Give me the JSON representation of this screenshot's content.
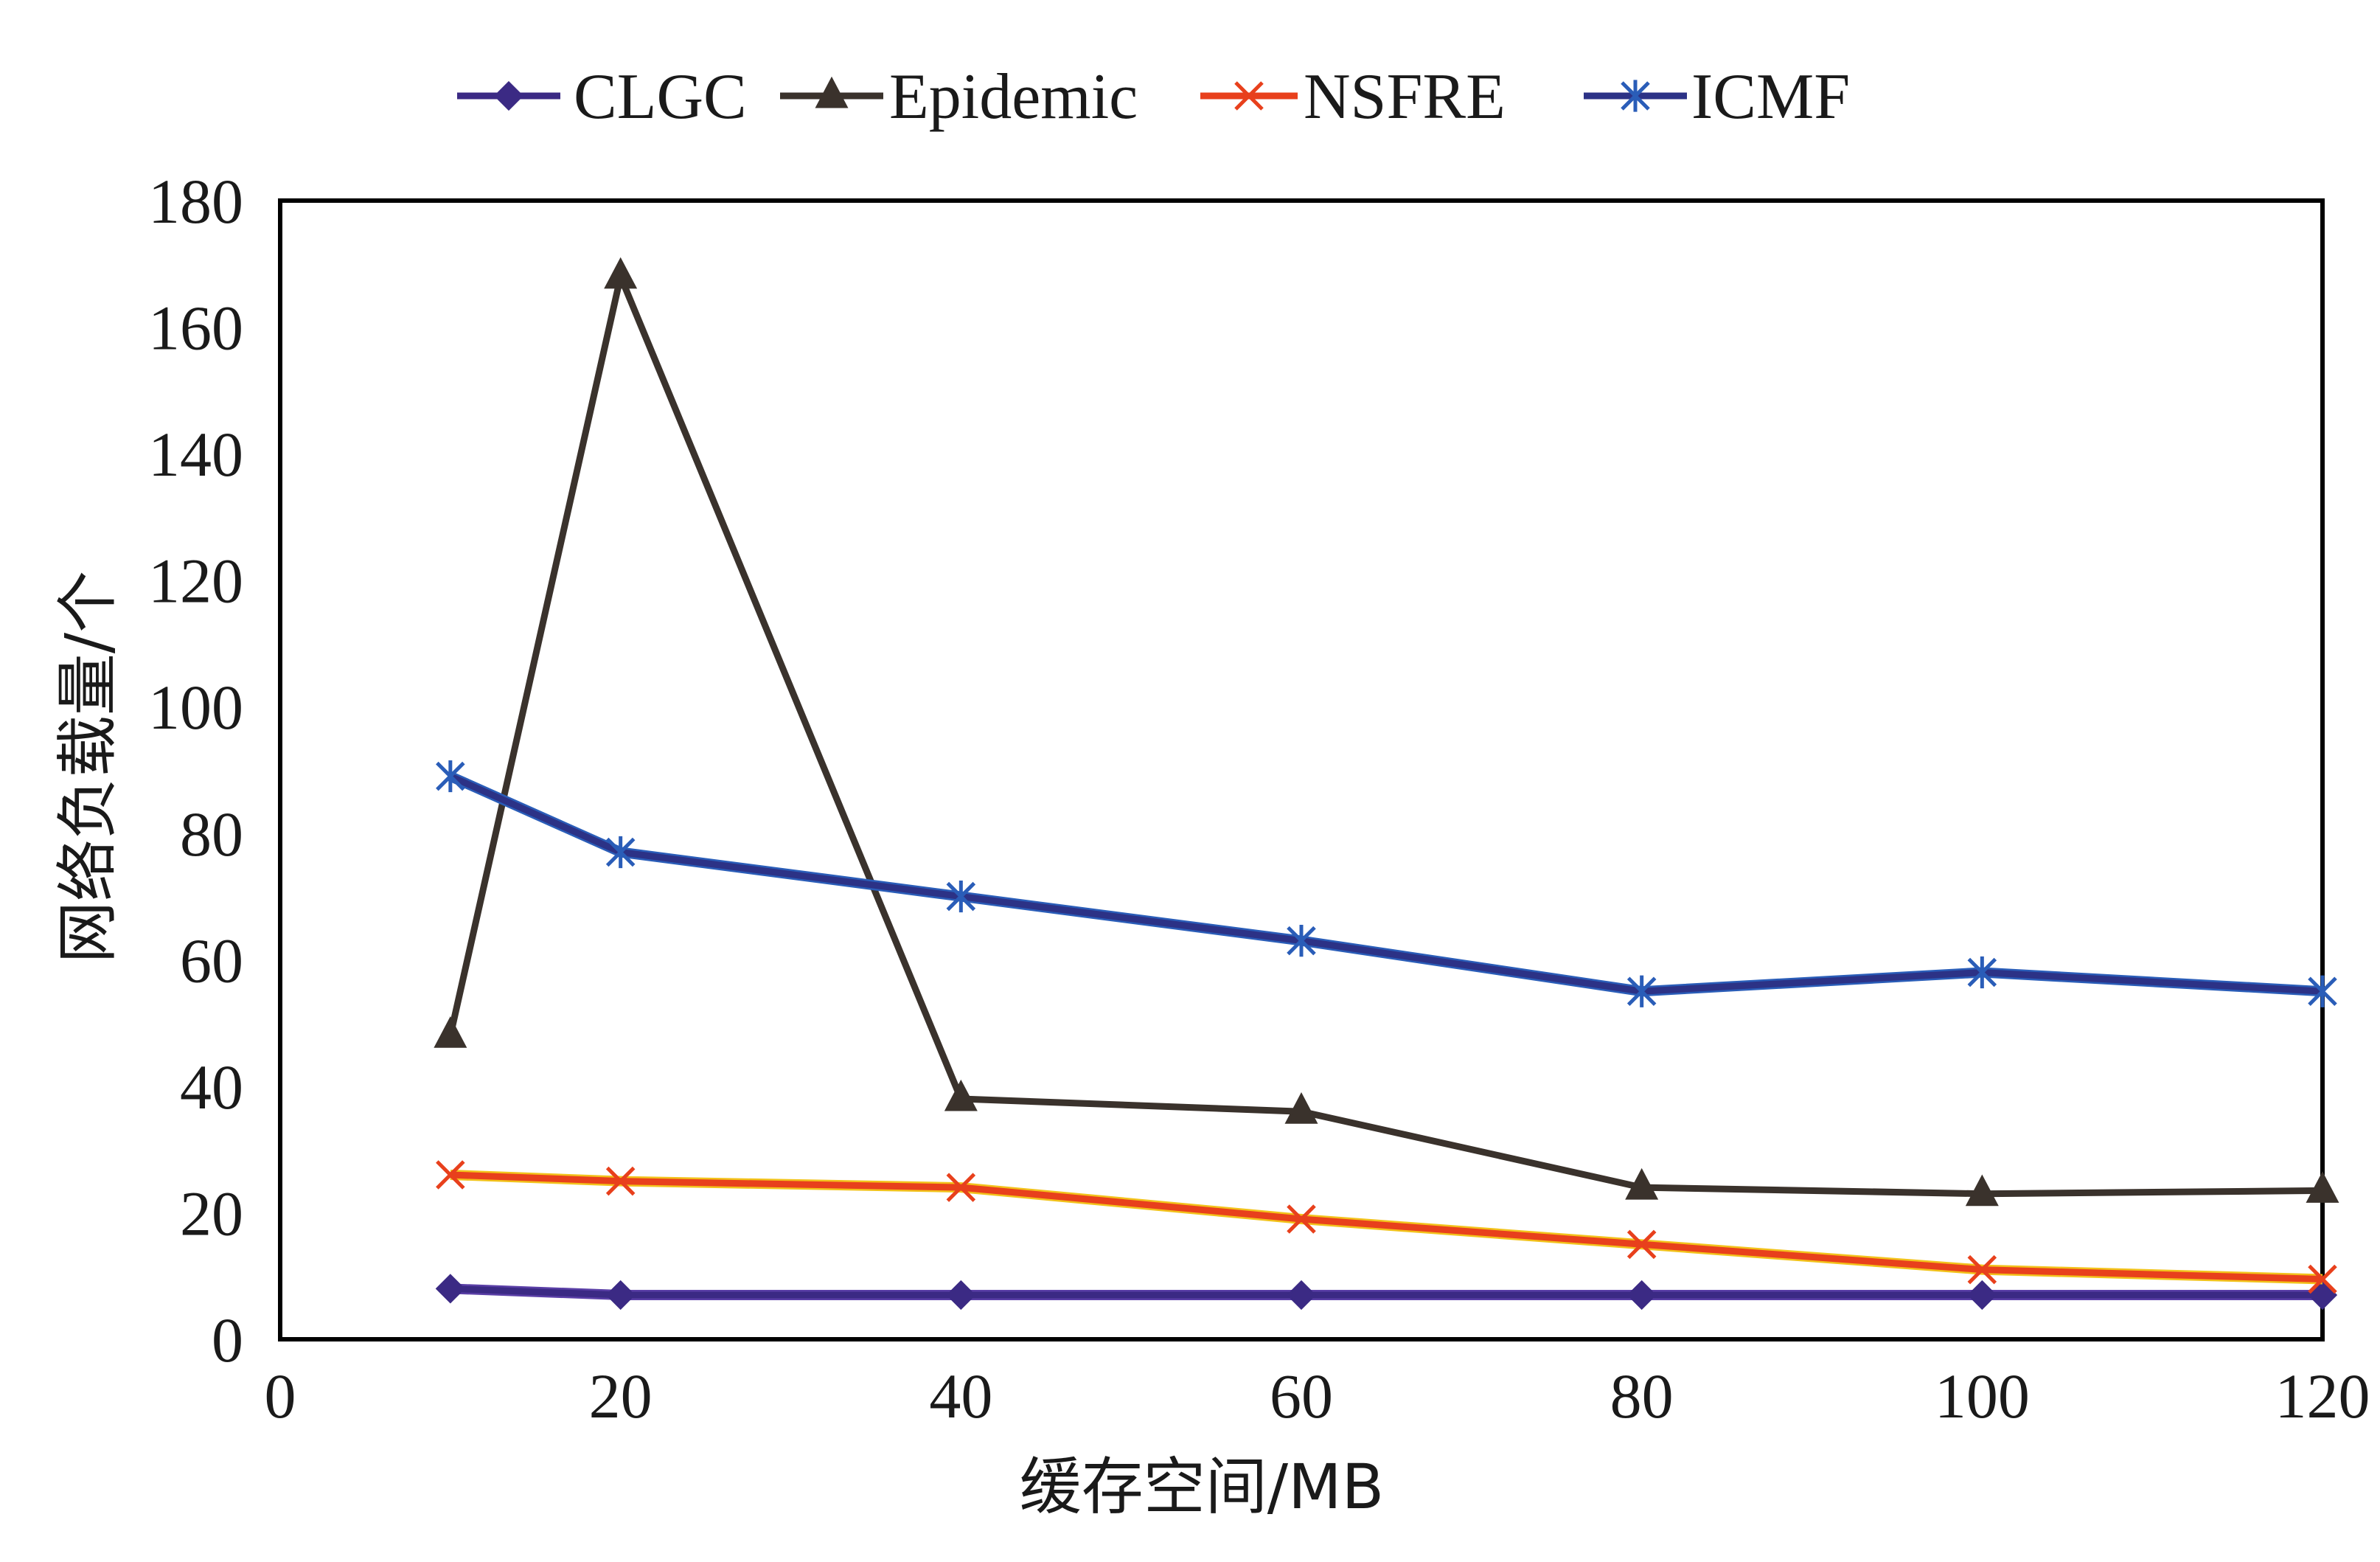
{
  "chart_data": {
    "type": "line",
    "xlabel": "缓存空间/MB",
    "ylabel": "网络负载量/个",
    "xlim": [
      0,
      120
    ],
    "ylim": [
      0,
      180
    ],
    "x_ticks": [
      "0",
      "20",
      "40",
      "60",
      "80",
      "100",
      "120"
    ],
    "y_ticks": [
      "0",
      "20",
      "40",
      "60",
      "80",
      "100",
      "120",
      "140",
      "160",
      "180"
    ],
    "grid": false,
    "legend_position": "top",
    "x": [
      10,
      20,
      40,
      60,
      80,
      100,
      120
    ],
    "series": [
      {
        "name": "CLGC",
        "marker": "diamond",
        "color": "#3b2a84",
        "values": [
          8,
          7,
          7,
          7,
          7,
          7,
          7
        ]
      },
      {
        "name": "Epidemic",
        "marker": "triangle",
        "color": "#3a322c",
        "values": [
          48,
          168,
          38,
          36,
          24,
          23,
          23.5
        ]
      },
      {
        "name": "NSFRE",
        "marker": "x",
        "color": "#e8401c",
        "values": [
          26,
          25,
          24,
          19,
          15,
          11,
          9.5
        ]
      },
      {
        "name": "ICMF",
        "marker": "asterisk",
        "color": "#2c3286",
        "values": [
          89,
          77,
          70,
          63,
          55,
          58,
          55
        ]
      }
    ]
  }
}
